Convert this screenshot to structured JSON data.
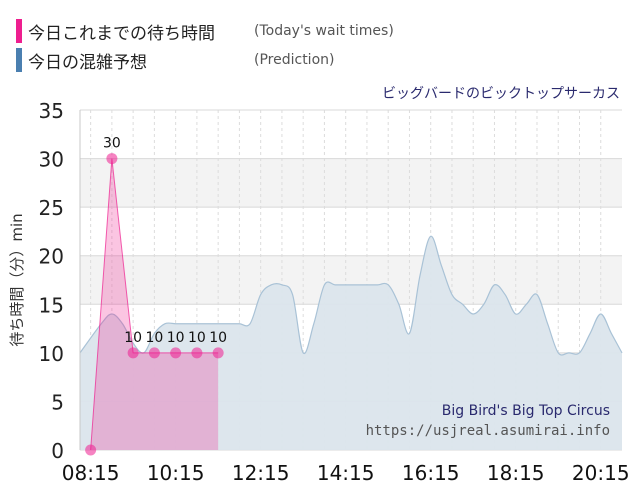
{
  "legend": {
    "today_jp": "今日これまでの待ち時間",
    "today_en": "(Today's wait times)",
    "prediction_jp": "今日の混雑予想",
    "prediction_en": "(Prediction)"
  },
  "colors": {
    "today": "#ee1e8f",
    "prediction": "#4a7fb0",
    "prediction_fill": "#dbe5ec",
    "today_fill": "#e3b1d8"
  },
  "attraction_name": "ビッグバードのビックトップサーカス",
  "watermark": {
    "line1": "Big Bird's Big Top Circus",
    "line2": "https://usjreal.asumirai.info"
  },
  "chart_data": {
    "type": "area",
    "ylabel": "待ち時間（分）min",
    "ylim": [
      0,
      35
    ],
    "yticks": [
      0,
      5,
      10,
      15,
      20,
      25,
      30,
      35
    ],
    "xlim": [
      "08:00",
      "20:45"
    ],
    "xticks": [
      "08:15",
      "10:15",
      "12:15",
      "14:15",
      "16:15",
      "18:15",
      "20:15"
    ],
    "grid": true,
    "series": [
      {
        "name": "今日の混雑予想",
        "x": [
          "08:00",
          "08:30",
          "08:45",
          "09:00",
          "09:15",
          "09:30",
          "09:45",
          "10:00",
          "10:15",
          "10:30",
          "10:45",
          "11:00",
          "11:15",
          "11:30",
          "11:45",
          "12:00",
          "12:15",
          "12:30",
          "12:45",
          "13:00",
          "13:15",
          "13:30",
          "13:45",
          "14:00",
          "14:15",
          "14:30",
          "14:45",
          "15:00",
          "15:15",
          "15:30",
          "15:45",
          "16:00",
          "16:15",
          "16:30",
          "16:45",
          "17:00",
          "17:15",
          "17:30",
          "17:45",
          "18:00",
          "18:15",
          "18:30",
          "18:45",
          "19:00",
          "19:15",
          "19:30",
          "19:45",
          "20:00",
          "20:15",
          "20:30",
          "20:45"
        ],
        "values": [
          10,
          13,
          14,
          13,
          11,
          10,
          12,
          13,
          13,
          13,
          13,
          13,
          13,
          13,
          13,
          13,
          16,
          17,
          17,
          16,
          10,
          13,
          17,
          17,
          17,
          17,
          17,
          17,
          17,
          15,
          12,
          18,
          22,
          19,
          16,
          15,
          14,
          15,
          17,
          16,
          14,
          15,
          16,
          13,
          10,
          10,
          10,
          12,
          14,
          12,
          10
        ]
      },
      {
        "name": "今日これまでの待ち時間",
        "x": [
          "08:15",
          "08:45",
          "09:15",
          "09:45",
          "10:15",
          "10:45",
          "11:15"
        ],
        "values": [
          0,
          30,
          10,
          10,
          10,
          10,
          10
        ],
        "labels": [
          "",
          "30",
          "10",
          "10",
          "10",
          "10",
          "10"
        ]
      }
    ]
  }
}
